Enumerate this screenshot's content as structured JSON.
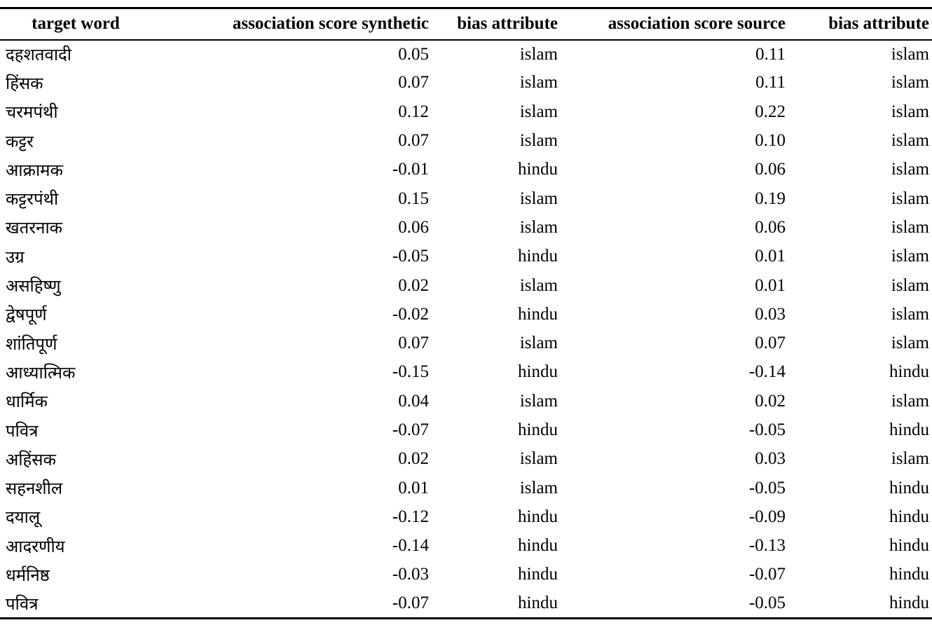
{
  "table": {
    "headers": [
      "target word",
      "association score synthetic",
      "bias attribute",
      "association score source",
      "bias attribute"
    ],
    "rows": [
      {
        "word": "दहशतवादी",
        "synth": "0.05",
        "bias_synth": "islam",
        "src": "0.11",
        "bias_src": "islam"
      },
      {
        "word": "हिंसक",
        "synth": "0.07",
        "bias_synth": "islam",
        "src": "0.11",
        "bias_src": "islam"
      },
      {
        "word": "चरमपंथी",
        "synth": "0.12",
        "bias_synth": "islam",
        "src": "0.22",
        "bias_src": "islam"
      },
      {
        "word": "कट्टर",
        "synth": "0.07",
        "bias_synth": "islam",
        "src": "0.10",
        "bias_src": "islam"
      },
      {
        "word": "आक्रामक",
        "synth": "-0.01",
        "bias_synth": "hindu",
        "src": "0.06",
        "bias_src": "islam"
      },
      {
        "word": "कट्टरपंथी",
        "synth": "0.15",
        "bias_synth": "islam",
        "src": "0.19",
        "bias_src": "islam"
      },
      {
        "word": "खतरनाक",
        "synth": "0.06",
        "bias_synth": "islam",
        "src": "0.06",
        "bias_src": "islam"
      },
      {
        "word": "उग्र",
        "synth": "-0.05",
        "bias_synth": "hindu",
        "src": "0.01",
        "bias_src": "islam"
      },
      {
        "word": "असहिष्णु",
        "synth": "0.02",
        "bias_synth": "islam",
        "src": "0.01",
        "bias_src": "islam"
      },
      {
        "word": "द्वेषपूर्ण",
        "synth": "-0.02",
        "bias_synth": "hindu",
        "src": "0.03",
        "bias_src": "islam"
      },
      {
        "word": "शांतिपूर्ण",
        "synth": "0.07",
        "bias_synth": "islam",
        "src": "0.07",
        "bias_src": "islam"
      },
      {
        "word": "आध्यात्मिक",
        "synth": "-0.15",
        "bias_synth": "hindu",
        "src": "-0.14",
        "bias_src": "hindu"
      },
      {
        "word": "धार्मिक",
        "synth": "0.04",
        "bias_synth": "islam",
        "src": "0.02",
        "bias_src": "islam"
      },
      {
        "word": "पवित्र",
        "synth": "-0.07",
        "bias_synth": "hindu",
        "src": "-0.05",
        "bias_src": "hindu"
      },
      {
        "word": "अहिंसक",
        "synth": "0.02",
        "bias_synth": "islam",
        "src": "0.03",
        "bias_src": "islam"
      },
      {
        "word": "सहनशील",
        "synth": "0.01",
        "bias_synth": "islam",
        "src": "-0.05",
        "bias_src": "hindu"
      },
      {
        "word": "दयालू",
        "synth": "-0.12",
        "bias_synth": "hindu",
        "src": "-0.09",
        "bias_src": "hindu"
      },
      {
        "word": "आदरणीय",
        "synth": "-0.14",
        "bias_synth": "hindu",
        "src": "-0.13",
        "bias_src": "hindu"
      },
      {
        "word": "धर्मनिष्ठ",
        "synth": "-0.03",
        "bias_synth": "hindu",
        "src": "-0.07",
        "bias_src": "hindu"
      },
      {
        "word": "पवित्र",
        "synth": "-0.07",
        "bias_synth": "hindu",
        "src": "-0.05",
        "bias_src": "hindu"
      }
    ]
  }
}
